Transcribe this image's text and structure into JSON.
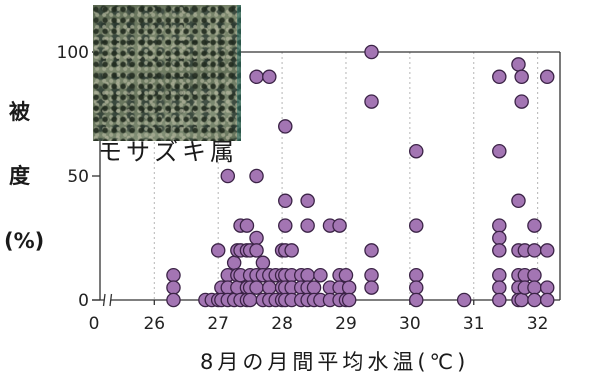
{
  "inset": {
    "label": "モサズキ属"
  },
  "chart_data": {
    "type": "scatter",
    "xlabel": "8月の月間平均水温(℃)",
    "ylabel_lines": [
      "被",
      "度",
      "(%)"
    ],
    "x_ticks": [
      "0",
      "26",
      "27",
      "28",
      "29",
      "30",
      "31",
      "32"
    ],
    "x_axis_break": true,
    "xlim": [
      25.15,
      32.35
    ],
    "y_ticks": [
      "0",
      "50",
      "100"
    ],
    "ylim": [
      0,
      100
    ],
    "grid": {
      "x": true,
      "y": false
    },
    "colors": {
      "point_fill": "#a375b3",
      "point_stroke": "#3b2346",
      "axis": "#333333",
      "grid": "#b5b5b5"
    },
    "points": [
      [
        26.3,
        10
      ],
      [
        26.3,
        5
      ],
      [
        26.3,
        0
      ],
      [
        26.8,
        0
      ],
      [
        26.9,
        0
      ],
      [
        27.0,
        20
      ],
      [
        27.0,
        0
      ],
      [
        27.05,
        5
      ],
      [
        27.05,
        0
      ],
      [
        27.15,
        50
      ],
      [
        27.15,
        10
      ],
      [
        27.15,
        5
      ],
      [
        27.15,
        0
      ],
      [
        27.25,
        15
      ],
      [
        27.25,
        0
      ],
      [
        27.3,
        20
      ],
      [
        27.3,
        10
      ],
      [
        27.3,
        5
      ],
      [
        27.35,
        30
      ],
      [
        27.35,
        20
      ],
      [
        27.35,
        10
      ],
      [
        27.35,
        0
      ],
      [
        27.45,
        30
      ],
      [
        27.45,
        20
      ],
      [
        27.45,
        5
      ],
      [
        27.45,
        0
      ],
      [
        27.5,
        20
      ],
      [
        27.5,
        10
      ],
      [
        27.5,
        5
      ],
      [
        27.5,
        0
      ],
      [
        27.6,
        90
      ],
      [
        27.6,
        50
      ],
      [
        27.6,
        25
      ],
      [
        27.6,
        20
      ],
      [
        27.6,
        10
      ],
      [
        27.6,
        5
      ],
      [
        27.7,
        15
      ],
      [
        27.7,
        10
      ],
      [
        27.7,
        0
      ],
      [
        27.8,
        90
      ],
      [
        27.8,
        10
      ],
      [
        27.8,
        5
      ],
      [
        27.8,
        0
      ],
      [
        27.9,
        10
      ],
      [
        27.9,
        0
      ],
      [
        28.0,
        20
      ],
      [
        28.0,
        10
      ],
      [
        28.0,
        5
      ],
      [
        28.0,
        0
      ],
      [
        28.05,
        70
      ],
      [
        28.05,
        40
      ],
      [
        28.05,
        30
      ],
      [
        28.05,
        20
      ],
      [
        28.05,
        10
      ],
      [
        28.05,
        5
      ],
      [
        28.05,
        0
      ],
      [
        28.15,
        20
      ],
      [
        28.15,
        10
      ],
      [
        28.15,
        5
      ],
      [
        28.15,
        0
      ],
      [
        28.3,
        10
      ],
      [
        28.3,
        5
      ],
      [
        28.3,
        0
      ],
      [
        28.4,
        40
      ],
      [
        28.4,
        30
      ],
      [
        28.4,
        10
      ],
      [
        28.4,
        5
      ],
      [
        28.4,
        0
      ],
      [
        28.5,
        5
      ],
      [
        28.5,
        0
      ],
      [
        28.6,
        10
      ],
      [
        28.6,
        0
      ],
      [
        28.75,
        30
      ],
      [
        28.75,
        5
      ],
      [
        28.75,
        0
      ],
      [
        28.9,
        30
      ],
      [
        28.9,
        10
      ],
      [
        28.9,
        5
      ],
      [
        28.9,
        0
      ],
      [
        29.0,
        10
      ],
      [
        29.0,
        0
      ],
      [
        29.05,
        5
      ],
      [
        29.05,
        0
      ],
      [
        29.4,
        100
      ],
      [
        29.4,
        80
      ],
      [
        29.4,
        20
      ],
      [
        29.4,
        10
      ],
      [
        29.4,
        5
      ],
      [
        30.1,
        60
      ],
      [
        30.1,
        30
      ],
      [
        30.1,
        10
      ],
      [
        30.1,
        5
      ],
      [
        30.1,
        0
      ],
      [
        30.85,
        0
      ],
      [
        31.4,
        90
      ],
      [
        31.4,
        60
      ],
      [
        31.4,
        30
      ],
      [
        31.4,
        25
      ],
      [
        31.4,
        20
      ],
      [
        31.4,
        10
      ],
      [
        31.4,
        5
      ],
      [
        31.4,
        0
      ],
      [
        31.7,
        95
      ],
      [
        31.7,
        40
      ],
      [
        31.7,
        20
      ],
      [
        31.7,
        10
      ],
      [
        31.7,
        5
      ],
      [
        31.7,
        0
      ],
      [
        31.75,
        90
      ],
      [
        31.75,
        80
      ],
      [
        31.75,
        0
      ],
      [
        31.8,
        20
      ],
      [
        31.8,
        10
      ],
      [
        31.8,
        5
      ],
      [
        31.95,
        30
      ],
      [
        31.95,
        20
      ],
      [
        31.95,
        10
      ],
      [
        31.95,
        5
      ],
      [
        31.95,
        0
      ],
      [
        32.15,
        90
      ],
      [
        32.15,
        20
      ],
      [
        32.15,
        5
      ],
      [
        32.15,
        0
      ]
    ]
  }
}
